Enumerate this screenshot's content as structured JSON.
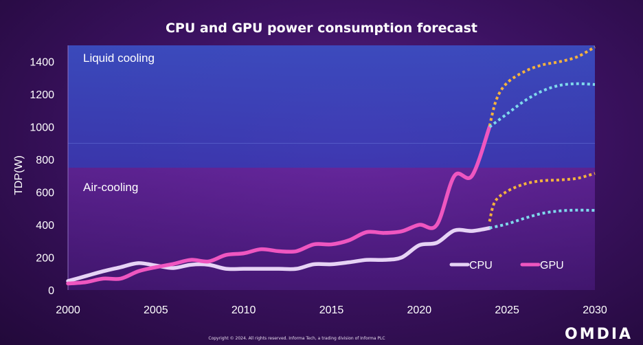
{
  "chart_data": {
    "type": "line",
    "title": "CPU and GPU power consumption forecast",
    "xlabel": "",
    "ylabel": "TDP(W)",
    "xlim": [
      2000,
      2030
    ],
    "ylim": [
      0,
      1500
    ],
    "x_ticks": [
      2000,
      2005,
      2010,
      2015,
      2020,
      2025,
      2030
    ],
    "y_ticks": [
      0,
      200,
      400,
      600,
      800,
      1000,
      1200,
      1400
    ],
    "grid": false,
    "legend_position": "bottom-right",
    "regions": [
      {
        "label": "Liquid cooling",
        "from": 750,
        "to": 1500,
        "color": "#3a46c0"
      },
      {
        "label": "Air-cooling",
        "from": 0,
        "to": 750,
        "color": "#5a2496"
      }
    ],
    "series": [
      {
        "name": "CPU",
        "color": "#e6d3f5",
        "style": "solid",
        "points": [
          [
            2000,
            55
          ],
          [
            2001,
            85
          ],
          [
            2002,
            115
          ],
          [
            2003,
            140
          ],
          [
            2004,
            165
          ],
          [
            2005,
            150
          ],
          [
            2006,
            135
          ],
          [
            2007,
            155
          ],
          [
            2008,
            155
          ],
          [
            2009,
            130
          ],
          [
            2010,
            130
          ],
          [
            2011,
            130
          ],
          [
            2012,
            130
          ],
          [
            2013,
            130
          ],
          [
            2014,
            158
          ],
          [
            2015,
            158
          ],
          [
            2016,
            170
          ],
          [
            2017,
            185
          ],
          [
            2018,
            185
          ],
          [
            2019,
            200
          ],
          [
            2020,
            275
          ],
          [
            2021,
            290
          ],
          [
            2022,
            365
          ],
          [
            2023,
            362
          ],
          [
            2024,
            380
          ]
        ]
      },
      {
        "name": "GPU",
        "color": "#ef56c0",
        "style": "solid",
        "points": [
          [
            2000,
            40
          ],
          [
            2001,
            48
          ],
          [
            2002,
            70
          ],
          [
            2003,
            70
          ],
          [
            2004,
            115
          ],
          [
            2005,
            140
          ],
          [
            2006,
            160
          ],
          [
            2007,
            185
          ],
          [
            2008,
            175
          ],
          [
            2009,
            215
          ],
          [
            2010,
            225
          ],
          [
            2011,
            250
          ],
          [
            2012,
            238
          ],
          [
            2013,
            238
          ],
          [
            2014,
            280
          ],
          [
            2015,
            280
          ],
          [
            2016,
            305
          ],
          [
            2017,
            355
          ],
          [
            2018,
            350
          ],
          [
            2019,
            360
          ],
          [
            2020,
            400
          ],
          [
            2021,
            400
          ],
          [
            2022,
            700
          ],
          [
            2023,
            700
          ],
          [
            2024,
            1000
          ]
        ]
      }
    ],
    "forecasts": [
      {
        "color": "#f4b23e",
        "style": "dotted",
        "points": [
          [
            2024,
            1005
          ],
          [
            2024.4,
            1170
          ],
          [
            2025,
            1270
          ],
          [
            2026,
            1340
          ],
          [
            2027,
            1380
          ],
          [
            2028,
            1400
          ],
          [
            2029,
            1430
          ],
          [
            2030,
            1490
          ]
        ]
      },
      {
        "color": "#7fd9ec",
        "style": "dotted",
        "points": [
          [
            2024,
            1000
          ],
          [
            2025,
            1080
          ],
          [
            2026,
            1160
          ],
          [
            2027,
            1220
          ],
          [
            2028,
            1255
          ],
          [
            2029,
            1265
          ],
          [
            2030,
            1260
          ]
        ]
      },
      {
        "color": "#f4b23e",
        "style": "dotted",
        "points": [
          [
            2024,
            420
          ],
          [
            2024.3,
            540
          ],
          [
            2025,
            605
          ],
          [
            2026,
            650
          ],
          [
            2027,
            670
          ],
          [
            2028,
            675
          ],
          [
            2029,
            685
          ],
          [
            2030,
            715
          ]
        ]
      },
      {
        "color": "#7fd9ec",
        "style": "dotted",
        "points": [
          [
            2024,
            380
          ],
          [
            2025,
            405
          ],
          [
            2026,
            440
          ],
          [
            2027,
            470
          ],
          [
            2028,
            485
          ],
          [
            2029,
            490
          ],
          [
            2030,
            488
          ]
        ]
      }
    ]
  },
  "footer": {
    "copyright": "Copyright © 2024. All rights reserved. Informa Tech, a trading division of Informa PLC",
    "logo": "OMDIA"
  }
}
